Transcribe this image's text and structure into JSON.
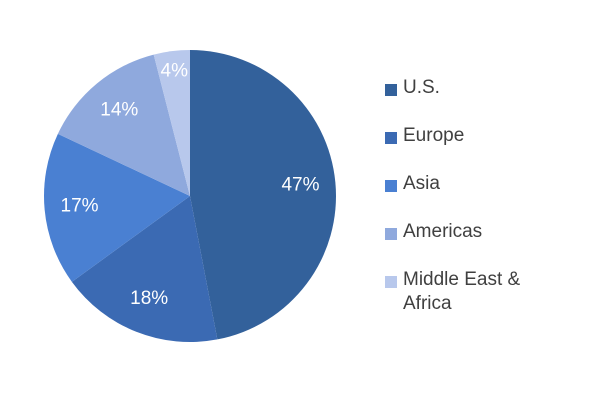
{
  "chart_data": {
    "type": "pie",
    "categories": [
      "U.S.",
      "Europe",
      "Asia",
      "Americas",
      "Middle East & Africa"
    ],
    "values": [
      47,
      18,
      17,
      14,
      4
    ],
    "value_labels": [
      "47%",
      "18%",
      "17%",
      "14%",
      "4%"
    ],
    "colors": [
      "#33619b",
      "#3b6ab3",
      "#4a80d2",
      "#8fa9dd",
      "#b8c8ec"
    ],
    "legend": "right"
  }
}
